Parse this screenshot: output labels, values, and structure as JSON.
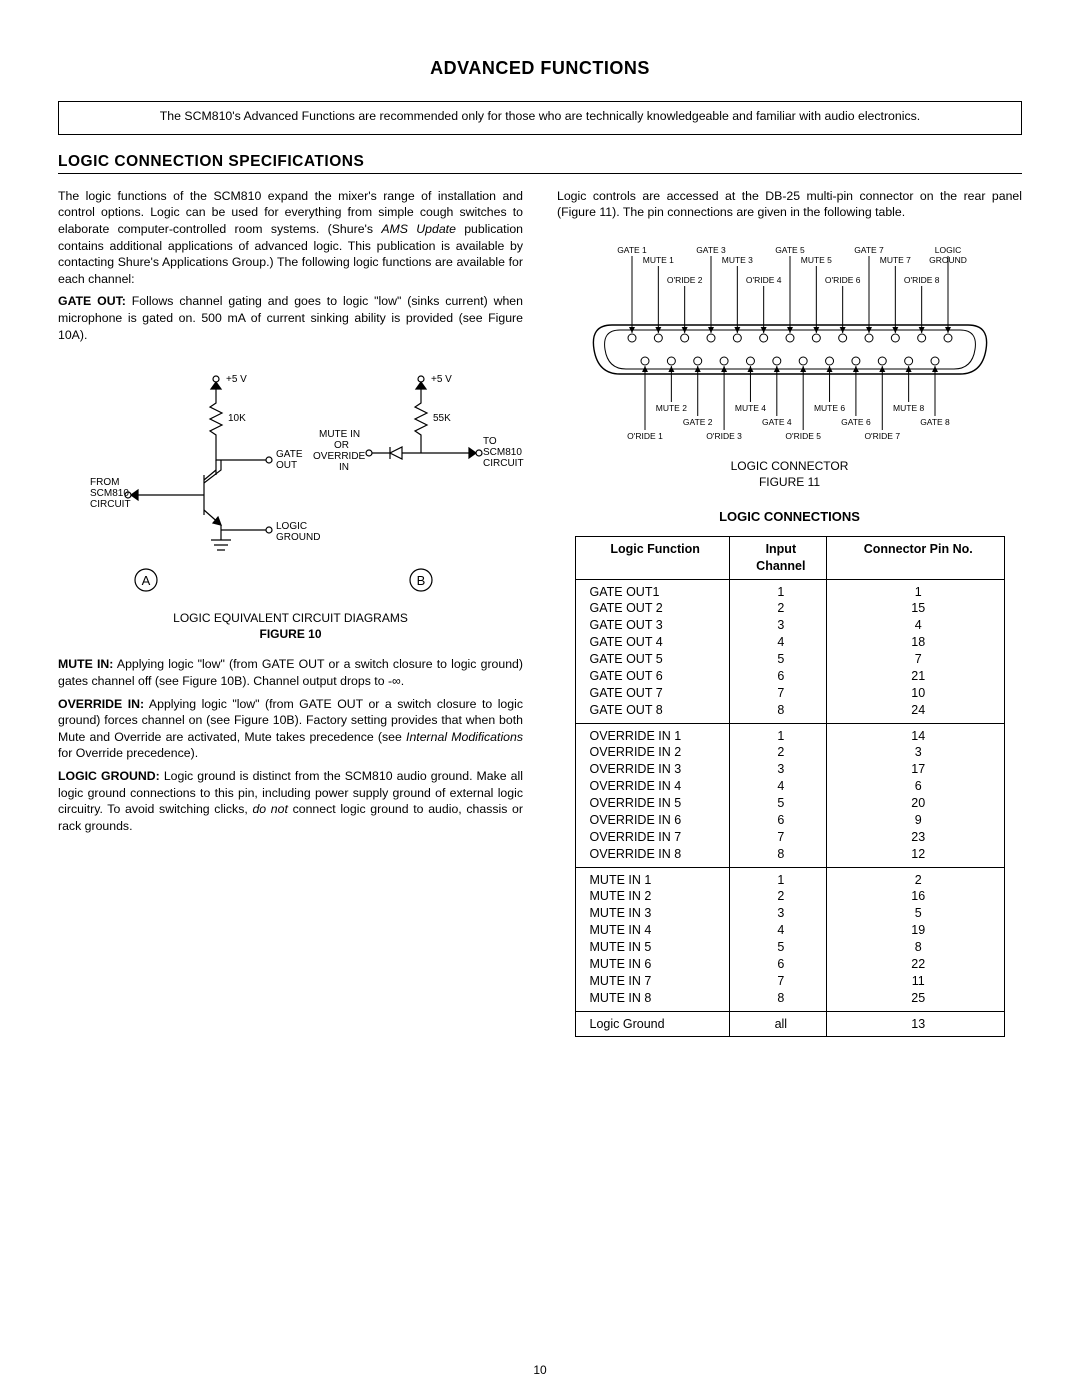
{
  "page": {
    "title": "ADVANCED FUNCTIONS",
    "note": "The SCM810's Advanced Functions are recommended only for those who are technically knowledgeable and familiar with audio electronics.",
    "sectionTitle": "LOGIC CONNECTION SPECIFICATIONS",
    "pageNumber": "10"
  },
  "leftCol": {
    "intro_plain1": "The logic functions of the SCM810 expand the mixer's range of installation and control options. Logic can be used for everything from simple cough switches to elaborate computer-controlled room systems. (Shure's ",
    "intro_ital": "AMS Update",
    "intro_plain2": " publication contains additional applications of advanced logic. This publication is available by contacting Shure's Applications Group.) The following logic functions are available for each channel:",
    "gateout_label": "GATE OUT:",
    "gateout_text": " Follows channel gating and goes to logic \"low\" (sinks current) when microphone is gated on. 500 mA of current sinking ability is provided (see Figure 10A).",
    "fig10_cap1": "LOGIC EQUIVALENT CIRCUIT DIAGRAMS",
    "fig10_cap2": "FIGURE 10",
    "mutein_label": "MUTE IN:",
    "mutein_text": " Applying logic \"low\" (from GATE OUT or a switch closure to logic ground) gates channel off (see Figure 10B). Channel output drops to -∞.",
    "override_label": "OVERRIDE IN:",
    "override_text1": " Applying logic \"low\" (from GATE OUT or a switch closure to logic ground) forces channel on (see Figure 10B). Factory setting provides that when both Mute and Override are activated, Mute takes precedence (see ",
    "override_ital": "Internal Modifications",
    "override_text2": " for Override precedence).",
    "lg_label": "LOGIC GROUND:",
    "lg_text1": " Logic ground is distinct from the SCM810 audio ground. Make all logic ground connections to this pin, including power supply ground of external logic circuitry. To avoid switching clicks, ",
    "lg_ital": "do not",
    "lg_text2": " connect logic ground to audio, chassis or rack grounds."
  },
  "circuit": {
    "v5_a": "+5 V",
    "v5_b": "+5 V",
    "r10k": "10K",
    "r55k": "55K",
    "gateout_l1": "GATE",
    "gateout_l2": "OUT",
    "from_l1": "FROM",
    "from_l2": "SCM810",
    "from_l3": "CIRCUIT",
    "mute_l1": "MUTE IN",
    "mute_l2": "OR",
    "mute_l3": "OVERRIDE",
    "mute_l4": "IN",
    "to_l1": "TO",
    "to_l2": "SCM810",
    "to_l3": "CIRCUIT",
    "lg_l1": "LOGIC",
    "lg_l2": "GROUND",
    "A": "A",
    "B": "B"
  },
  "rightCol": {
    "intro": "Logic controls are accessed at the DB-25 multi-pin connector on the rear panel (Figure 11). The pin connections are given in the following table.",
    "fig11_cap1": "LOGIC CONNECTOR",
    "fig11_cap2": "FIGURE 11",
    "tableTitle": "LOGIC CONNECTIONS",
    "headers": {
      "func": "Logic Function",
      "input": "Input\nChannel",
      "pin": "Connector Pin No."
    },
    "groups": [
      {
        "func": "GATE OUT1\nGATE OUT 2\nGATE OUT 3\nGATE OUT 4\nGATE OUT 5\nGATE OUT 6\nGATE OUT 7\nGATE OUT 8",
        "input": "1\n2\n3\n4\n5\n6\n7\n8",
        "pin": "1\n15\n4\n18\n7\n21\n10\n24"
      },
      {
        "func": "OVERRIDE IN 1\nOVERRIDE IN 2\nOVERRIDE IN 3\nOVERRIDE IN 4\nOVERRIDE IN 5\nOVERRIDE IN 6\nOVERRIDE IN 7\nOVERRIDE IN 8",
        "input": "1\n2\n3\n4\n5\n6\n7\n8",
        "pin": "14\n3\n17\n6\n20\n9\n23\n12"
      },
      {
        "func": "MUTE IN 1\nMUTE IN 2\nMUTE IN 3\nMUTE IN 4\nMUTE IN 5\nMUTE IN 6\nMUTE IN 7\nMUTE IN 8",
        "input": "1\n2\n3\n4\n5\n6\n7\n8",
        "pin": "2\n16\n5\n19\n8\n22\n11\n25"
      },
      {
        "func": "Logic Ground",
        "input": "all",
        "pin": "13"
      }
    ]
  },
  "connector": {
    "topLabelsUpper": [
      "GATE 1",
      "GATE 3",
      "GATE 5",
      "GATE 7",
      "LOGIC"
    ],
    "topLabelsLower": [
      "MUTE 1",
      "MUTE 3",
      "MUTE 5",
      "MUTE 7",
      "GROUND"
    ],
    "topLabelsRow2": [
      "O'RIDE 2",
      "O'RIDE 4",
      "O'RIDE 6",
      "O'RIDE 8"
    ],
    "bottomLabelsUpper": [
      "MUTE 2",
      "MUTE 4",
      "MUTE 6",
      "MUTE 8"
    ],
    "bottomLabelsMid": [
      "GATE 2",
      "GATE 4",
      "GATE 6",
      "GATE 8"
    ],
    "bottomLabelsLower": [
      "O'RIDE 1",
      "O'RIDE 3",
      "O'RIDE 5",
      "O'RIDE 7"
    ]
  }
}
